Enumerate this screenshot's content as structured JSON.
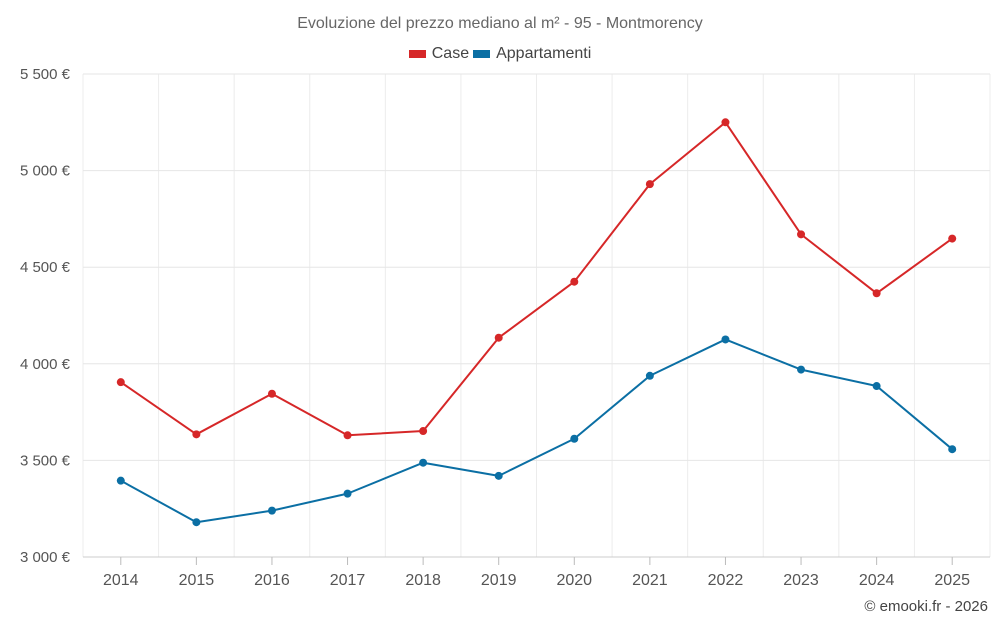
{
  "chart_data": {
    "type": "line",
    "title": "Evoluzione del prezzo mediano al m² - 95 - Montmorency",
    "categories": [
      "2014",
      "2015",
      "2016",
      "2017",
      "2018",
      "2019",
      "2020",
      "2021",
      "2022",
      "2023",
      "2024",
      "2025"
    ],
    "series": [
      {
        "name": "Case",
        "color": "#d62728",
        "values": [
          3905,
          3635,
          3845,
          3630,
          3652,
          4135,
          4425,
          4930,
          5250,
          4670,
          4365,
          4648
        ]
      },
      {
        "name": "Appartamenti",
        "color": "#0b6fa4",
        "values": [
          3395,
          3180,
          3240,
          3328,
          3488,
          3420,
          3612,
          3938,
          4126,
          3970,
          3885,
          3558
        ]
      }
    ],
    "y_ticks": [
      {
        "value": 3000,
        "label": "3 000 €"
      },
      {
        "value": 3500,
        "label": "3 500 €"
      },
      {
        "value": 4000,
        "label": "4 000 €"
      },
      {
        "value": 4500,
        "label": "4 500 €"
      },
      {
        "value": 5000,
        "label": "5 000 €"
      },
      {
        "value": 5500,
        "label": "5 500 €"
      }
    ],
    "ylim": [
      3000,
      5500
    ],
    "xlabel": "",
    "ylabel": "",
    "grid": true,
    "legend_position": "top-center"
  },
  "credit": "© emooki.fr - 2026"
}
